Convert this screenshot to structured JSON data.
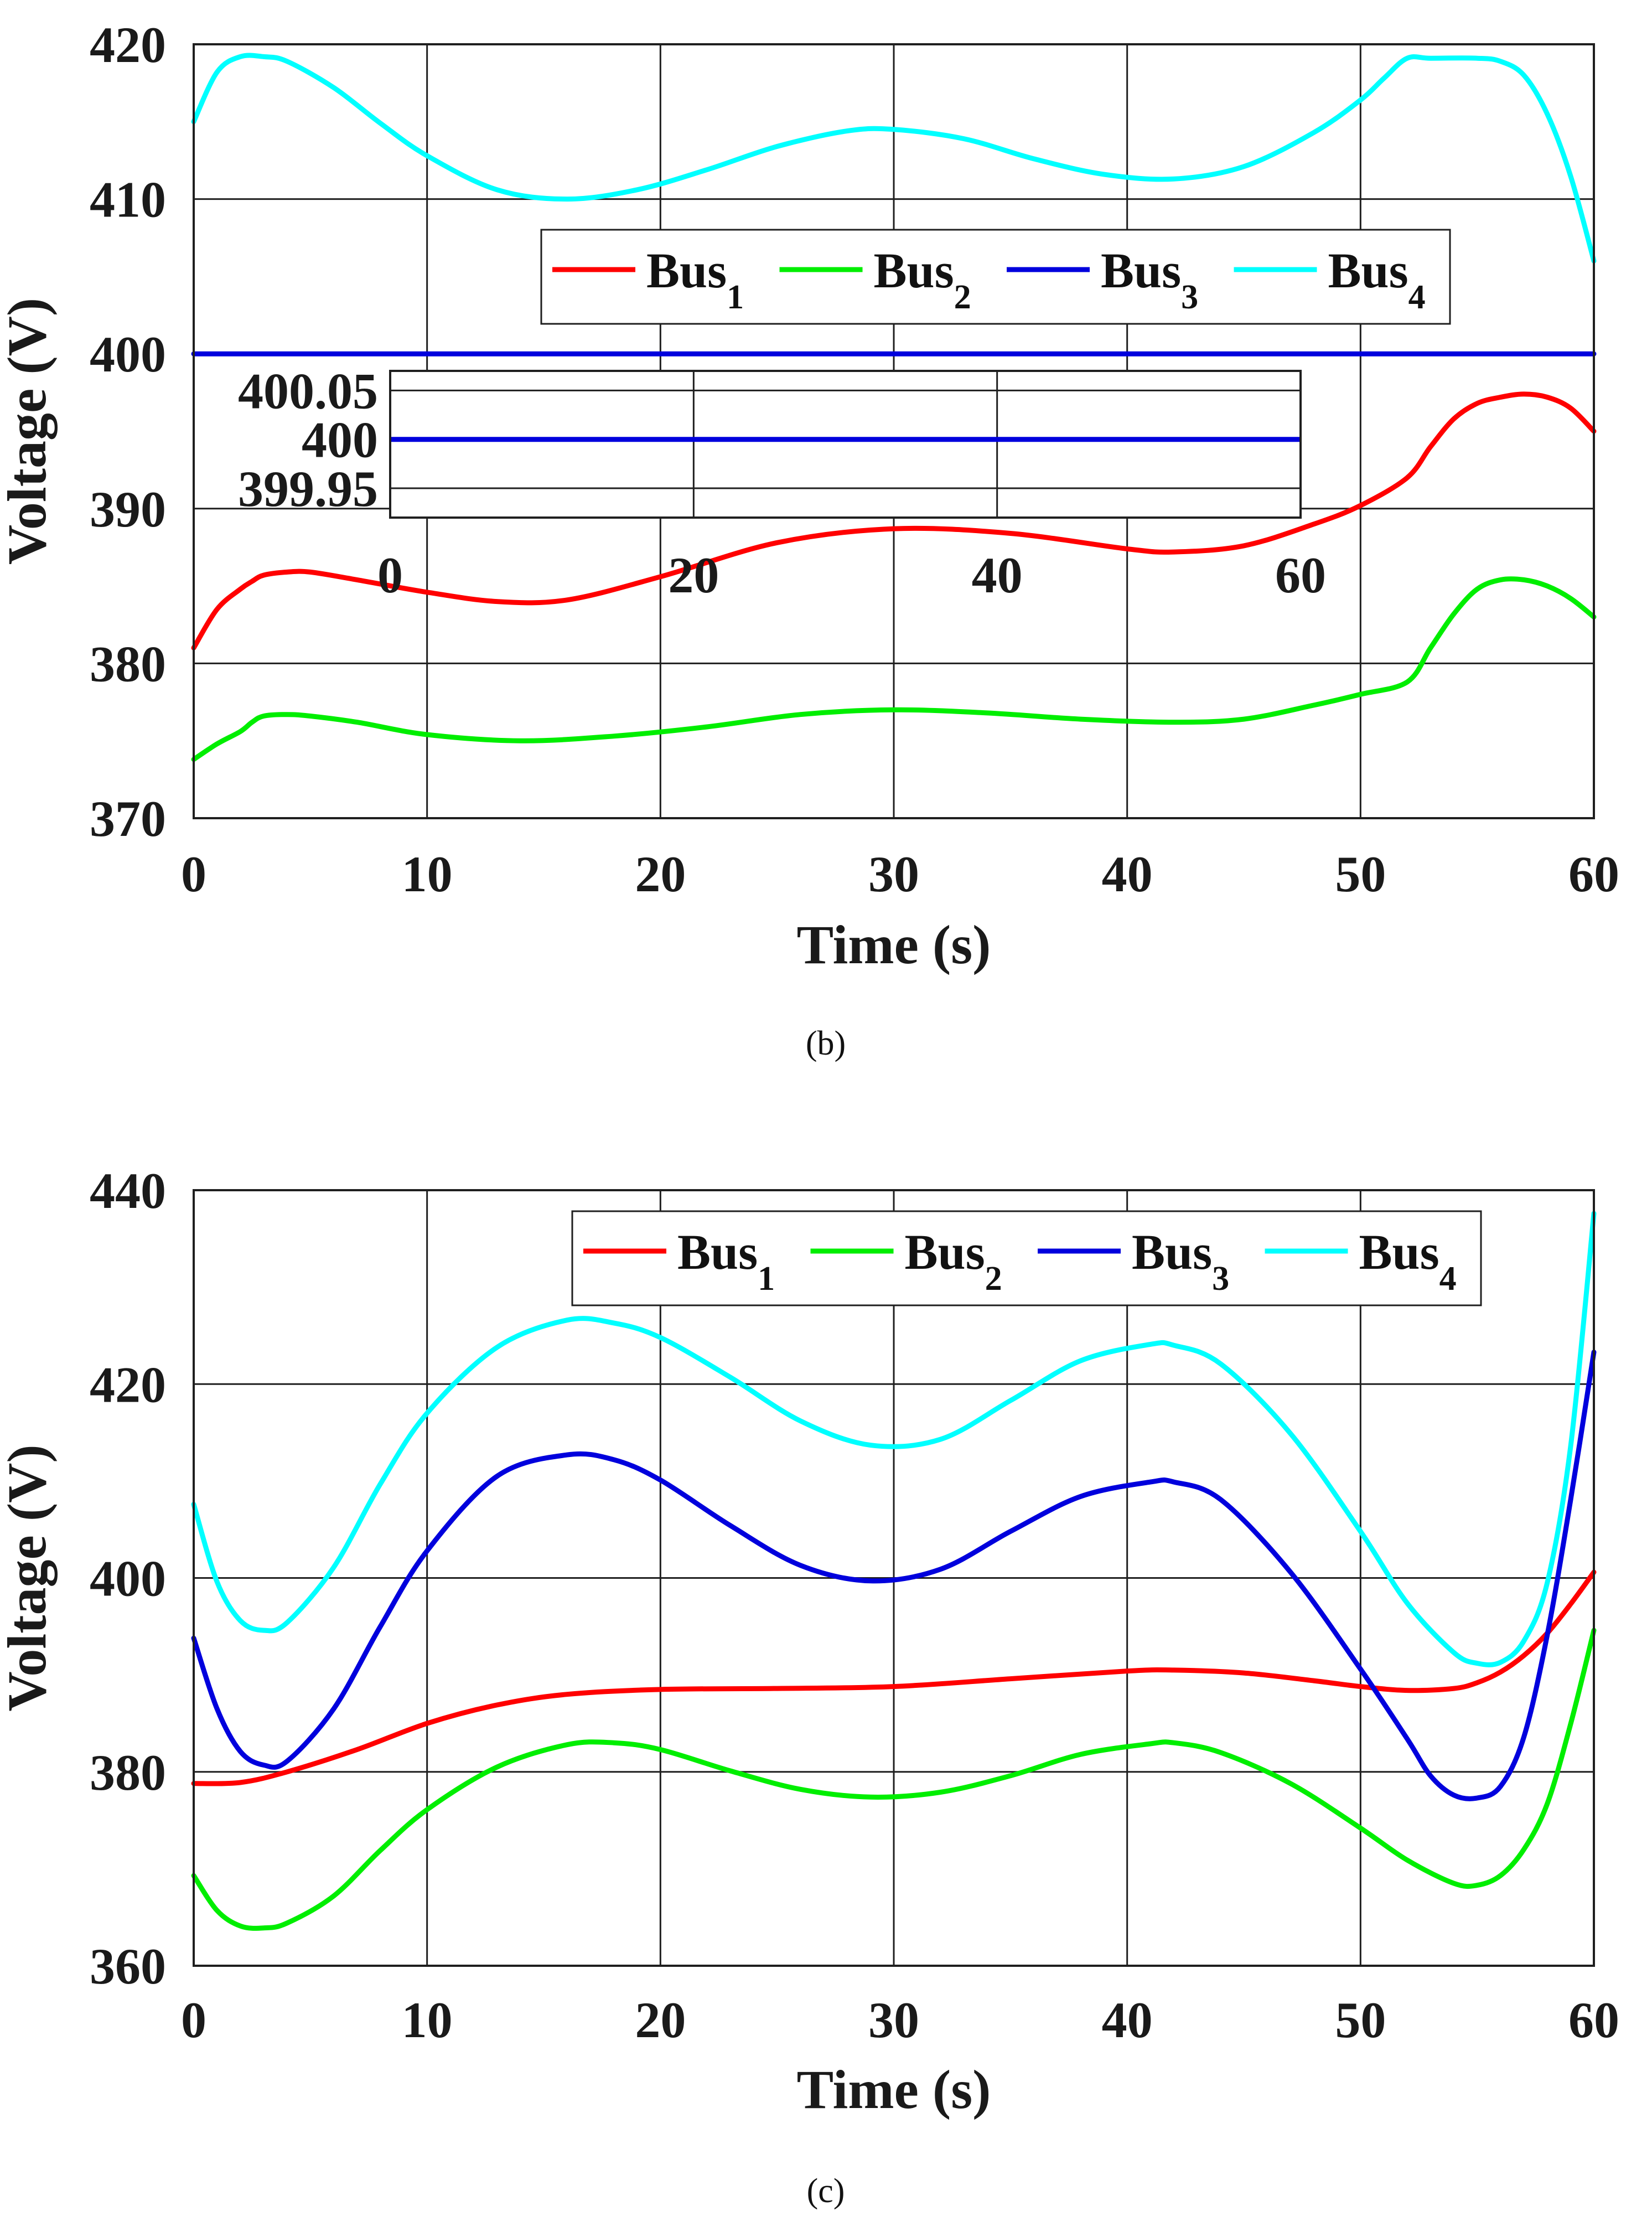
{
  "chart_data": [
    {
      "type": "line",
      "caption": "(b)",
      "xlabel": "Time (s)",
      "ylabel": "Voltage (V)",
      "xlim": [
        0,
        60
      ],
      "ylim": [
        370,
        420
      ],
      "x_ticks": [
        "0",
        "10",
        "20",
        "30",
        "40",
        "50",
        "60"
      ],
      "y_ticks": [
        "370",
        "380",
        "390",
        "400",
        "410",
        "420"
      ],
      "grid": true,
      "legend_position": "upper-center",
      "series": [
        {
          "name": "Bus",
          "subscript": "1",
          "color": "#ff0000",
          "x": [
            0,
            1,
            2,
            2.5,
            3,
            4,
            5,
            7,
            10,
            13,
            16,
            20,
            25,
            30,
            35,
            40,
            42,
            45,
            48,
            50,
            52,
            53,
            54,
            55,
            56,
            57,
            58,
            59,
            60
          ],
          "y": [
            381,
            383.5,
            384.8,
            385.3,
            385.7,
            385.9,
            385.9,
            385.4,
            384.6,
            384,
            384.1,
            385.6,
            387.8,
            388.7,
            388.4,
            387.4,
            387.2,
            387.6,
            389,
            390.2,
            392,
            394,
            395.8,
            396.8,
            397.2,
            397.4,
            397.2,
            396.5,
            395
          ]
        },
        {
          "name": "Bus",
          "subscript": "2",
          "color": "#00ee00",
          "x": [
            0,
            1,
            2,
            2.5,
            3,
            4,
            5,
            7,
            10,
            14,
            18,
            22,
            26,
            30,
            34,
            38,
            42,
            45,
            48,
            50,
            52,
            53,
            54,
            55,
            56,
            57,
            58,
            59,
            60
          ],
          "y": [
            373.8,
            374.8,
            375.6,
            376.2,
            376.6,
            376.7,
            376.6,
            376.2,
            375.4,
            375,
            375.3,
            375.9,
            376.7,
            377,
            376.8,
            376.4,
            376.2,
            376.4,
            377.3,
            378,
            378.8,
            381,
            383.2,
            384.8,
            385.4,
            385.4,
            385,
            384.2,
            383
          ]
        },
        {
          "name": "Bus",
          "subscript": "3",
          "color": "#0000dd",
          "x": [
            0,
            60
          ],
          "y": [
            400,
            400
          ]
        },
        {
          "name": "Bus",
          "subscript": "4",
          "color": "#00ffff",
          "x": [
            0,
            1,
            2,
            3,
            4,
            6,
            8,
            10,
            13,
            16,
            19,
            22,
            25,
            28,
            30,
            33,
            36,
            39,
            42,
            45,
            48,
            50,
            51,
            52,
            53,
            55,
            56,
            57,
            58,
            59,
            60
          ],
          "y": [
            415,
            418.2,
            419.2,
            419.2,
            418.9,
            417.2,
            414.9,
            412.8,
            410.6,
            410,
            410.6,
            411.9,
            413.4,
            414.4,
            414.5,
            413.9,
            412.6,
            411.6,
            411.3,
            412.1,
            414.3,
            416.4,
            417.8,
            419.1,
            419.1,
            419.1,
            418.9,
            418,
            415.5,
            411.5,
            406
          ]
        }
      ],
      "inset": {
        "y_ticks": [
          "400.05",
          "400",
          "399.95"
        ],
        "x_ticks": [
          "0",
          "20",
          "40",
          "60"
        ],
        "ylim": [
          399.92,
          400.07
        ],
        "xlim": [
          0,
          60
        ],
        "series": [
          {
            "name": "Bus",
            "subscript": "3",
            "color": "#0000dd",
            "x": [
              0,
              60
            ],
            "y": [
              400,
              400
            ]
          }
        ]
      }
    },
    {
      "type": "line",
      "caption": "(c)",
      "xlabel": "Time (s)",
      "ylabel": "Voltage (V)",
      "xlim": [
        0,
        60
      ],
      "ylim": [
        360,
        440
      ],
      "x_ticks": [
        "0",
        "10",
        "20",
        "30",
        "40",
        "50",
        "60"
      ],
      "y_ticks": [
        "360",
        "380",
        "400",
        "420",
        "440"
      ],
      "grid": true,
      "legend_position": "upper-right",
      "series": [
        {
          "name": "Bus",
          "subscript": "1",
          "color": "#ff0000",
          "x": [
            0,
            2,
            4,
            7,
            10,
            13,
            16,
            20,
            25,
            30,
            35,
            40,
            42,
            45,
            48,
            50,
            52,
            54,
            55,
            56,
            57,
            58,
            59,
            60
          ],
          "y": [
            378.8,
            378.9,
            380,
            382.3,
            385,
            386.9,
            388,
            388.5,
            388.6,
            388.8,
            389.6,
            390.4,
            390.5,
            390.2,
            389.4,
            388.8,
            388.4,
            388.6,
            389.2,
            390.3,
            392,
            394.3,
            397.3,
            400.6
          ]
        },
        {
          "name": "Bus",
          "subscript": "2",
          "color": "#00ee00",
          "x": [
            0,
            1,
            2,
            3,
            4,
            6,
            8,
            10,
            13,
            16,
            18,
            20,
            23,
            26,
            29,
            32,
            35,
            38,
            41,
            42,
            44,
            47,
            50,
            52,
            54,
            55,
            56,
            57,
            58,
            59,
            60
          ],
          "y": [
            369.3,
            365.7,
            364.1,
            363.9,
            364.4,
            367.2,
            371.9,
            376.1,
            380.5,
            382.8,
            383,
            382.3,
            380.1,
            378.2,
            377.4,
            377.9,
            379.6,
            381.8,
            382.9,
            383,
            382,
            378.8,
            374.2,
            370.9,
            368.5,
            368.3,
            369.3,
            372,
            376.7,
            384.9,
            394.6
          ]
        },
        {
          "name": "Bus",
          "subscript": "3",
          "color": "#0000dd",
          "x": [
            0,
            1,
            2,
            3,
            4,
            6,
            8,
            10,
            13,
            16,
            18,
            20,
            23,
            26,
            29,
            32,
            35,
            38,
            41,
            42,
            44,
            47,
            50,
            52,
            53,
            54,
            55,
            56,
            57,
            58,
            59,
            60
          ],
          "y": [
            393.8,
            386.5,
            382.1,
            380.7,
            381.1,
            386.5,
            395,
            402.8,
            410.5,
            412.7,
            412.2,
            410.1,
            405.4,
            401.3,
            399.7,
            400.9,
            404.8,
            408.4,
            409.9,
            409.9,
            408.1,
            400.6,
            390.6,
            383.4,
            379.6,
            377.6,
            377.3,
            378.5,
            383.6,
            394.1,
            408,
            423.3
          ]
        },
        {
          "name": "Bus",
          "subscript": "4",
          "color": "#00ffff",
          "x": [
            0,
            1,
            2,
            3,
            4,
            6,
            8,
            10,
            13,
            16,
            18,
            20,
            23,
            26,
            29,
            32,
            35,
            38,
            41,
            42,
            44,
            47,
            50,
            52,
            54,
            55,
            56,
            57,
            58,
            59,
            60
          ],
          "y": [
            407.6,
            399.6,
            395.6,
            394.6,
            395.4,
            401.1,
            409.7,
            417,
            423.8,
            426.6,
            426.3,
            424.8,
            420.7,
            416.2,
            413.7,
            414.3,
            418.3,
            422.4,
            424.1,
            424,
            422.1,
            414.9,
            404.8,
            397.4,
            392.3,
            391.2,
            391.3,
            393.5,
            399.5,
            413.5,
            437.6
          ]
        }
      ]
    }
  ]
}
